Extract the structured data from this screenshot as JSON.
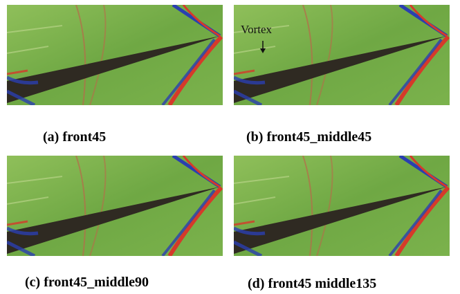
{
  "panels": [
    {
      "caption": "(a) front45"
    },
    {
      "caption": "(b) front45_middle45",
      "annotation": "Vortex"
    },
    {
      "caption": "(c) front45_middle90"
    },
    {
      "caption": "(d) front45 middle135"
    }
  ]
}
